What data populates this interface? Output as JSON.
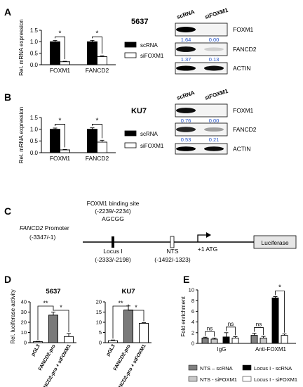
{
  "colors": {
    "scrna": "#000000",
    "sifoxm1": "#ffffff",
    "nts_scrna": "#808080",
    "nts_sifoxm1": "#c8c8c8",
    "locus_scrna": "#000000",
    "locus_sifoxm1": "#ffffff",
    "blot_value": "#1f4fc8"
  },
  "panels": {
    "a": {
      "letter": "A",
      "cell_line": "5637",
      "ylabel": "Rel. mRNA expression",
      "legend": [
        "scRNA",
        "siFOXM1"
      ],
      "blot": {
        "lanes": [
          "scRNA",
          "siFOXM1"
        ],
        "rows": [
          {
            "label": "FOXM1",
            "values": [
              "1.64",
              "0.00"
            ]
          },
          {
            "label": "FANCD2",
            "values": [
              "1.37",
              "0.13"
            ]
          },
          {
            "label": "ACTIN",
            "values": []
          }
        ]
      }
    },
    "b": {
      "letter": "B",
      "cell_line": "KU7",
      "ylabel": "Rel. mRNA expression",
      "legend": [
        "scRNA",
        "siFOXM1"
      ],
      "blot": {
        "lanes": [
          "scRNA",
          "siFOXM1"
        ],
        "rows": [
          {
            "label": "FOXM1",
            "values": [
              "0.76",
              "0.00"
            ]
          },
          {
            "label": "FANCD2",
            "values": [
              "0.53",
              "0.21"
            ]
          },
          {
            "label": "ACTIN",
            "values": []
          }
        ]
      }
    },
    "c": {
      "letter": "C",
      "binding_site_title": "FOXM1 binding site",
      "binding_site_range": "(-2239/-2234)",
      "binding_site_seq": "AGCGG",
      "promoter_name": "FANCD2",
      "promoter_suffix": " Promoter",
      "promoter_range": "(-3347/-1)",
      "locus_name": "Locus I",
      "locus_range": "(-2333/-2198)",
      "nts_name": "NTS",
      "nts_range": "(-1492/-1323)",
      "atg_label": "+1 ATG",
      "reporter_label": "Luciferase"
    },
    "d": {
      "letter": "D",
      "ylabel": "Rel. luciferase activity"
    },
    "e": {
      "letter": "E",
      "legend": [
        "NTS – scRNA",
        "Locus I - scRNA",
        "NTS - siFOXM1",
        "Locus I - siFOXM1"
      ]
    }
  },
  "chart_data": [
    {
      "id": "a",
      "type": "bar",
      "title": "5637",
      "ylabel": "Rel. mRNA expression",
      "categories": [
        "FOXM1",
        "FANCD2"
      ],
      "series": [
        {
          "name": "scRNA",
          "values": [
            1.0,
            1.0
          ],
          "errors": [
            0.06,
            0.06
          ]
        },
        {
          "name": "siFOXM1",
          "values": [
            0.13,
            0.35
          ],
          "errors": [
            0.02,
            0.04
          ]
        }
      ],
      "ylim": [
        0,
        1.5
      ],
      "yticks": [
        "0.0",
        "0.5",
        "1.0",
        "1.5"
      ],
      "significance": [
        "*",
        "*"
      ]
    },
    {
      "id": "b",
      "type": "bar",
      "title": "KU7",
      "ylabel": "Rel. mRNA expression",
      "categories": [
        "FOXM1",
        "FANCD2"
      ],
      "series": [
        {
          "name": "scRNA",
          "values": [
            1.0,
            1.0
          ],
          "errors": [
            0.05,
            0.06
          ]
        },
        {
          "name": "siFOXM1",
          "values": [
            0.12,
            0.45
          ],
          "errors": [
            0.02,
            0.08
          ]
        }
      ],
      "ylim": [
        0,
        1.5
      ],
      "yticks": [
        "0.0",
        "0.5",
        "1.0",
        "1.5"
      ],
      "significance": [
        "*",
        "*"
      ]
    },
    {
      "id": "d1",
      "type": "bar",
      "title": "5637",
      "ylabel": "Rel. luciferase activity",
      "categories": [
        "pGL3",
        "FANCD2-pro",
        "FANCD2-pro + siFOXM1"
      ],
      "values": [
        1,
        27,
        6
      ],
      "errors": [
        0.3,
        3,
        3
      ],
      "ylim": [
        0,
        40
      ],
      "yticks": [
        "0",
        "10",
        "20",
        "30",
        "40"
      ],
      "significance": [
        {
          "from": 0,
          "to": 1,
          "label": "**"
        },
        {
          "from": 1,
          "to": 2,
          "label": "*"
        }
      ]
    },
    {
      "id": "d2",
      "type": "bar",
      "title": "KU7",
      "categories": [
        "pGL3",
        "FANCD2-pro",
        "FANCD2-pro + siFOXM1"
      ],
      "values": [
        1,
        16,
        9.5
      ],
      "errors": [
        0.3,
        2,
        0.3
      ],
      "ylim": [
        0,
        20
      ],
      "yticks": [
        "0",
        "5",
        "10",
        "15",
        "20"
      ],
      "significance": [
        {
          "from": 0,
          "to": 1,
          "label": "**"
        },
        {
          "from": 1,
          "to": 2,
          "label": "*"
        }
      ]
    },
    {
      "id": "e",
      "type": "bar",
      "ylabel": "Fold enrichment",
      "groups": [
        "IgG",
        "Anti-FOXM1"
      ],
      "series": [
        {
          "name": "NTS – scRNA",
          "values": [
            1.0,
            1.5
          ],
          "errors": [
            0.15,
            0.4
          ]
        },
        {
          "name": "NTS - siFOXM1",
          "values": [
            0.8,
            1.0
          ],
          "errors": [
            0.2,
            0.3
          ]
        },
        {
          "name": "Locus I - scRNA",
          "values": [
            1.2,
            8.5
          ],
          "errors": [
            0.8,
            0.25
          ]
        },
        {
          "name": "Locus I - siFOXM1",
          "values": [
            1.0,
            1.5
          ],
          "errors": [
            0.25,
            0.25
          ]
        }
      ],
      "ylim": [
        0,
        10
      ],
      "yticks": [
        "0",
        "2",
        "4",
        "6",
        "8",
        "10"
      ],
      "significance": [
        "ns",
        "ns",
        "ns",
        "*"
      ]
    }
  ]
}
